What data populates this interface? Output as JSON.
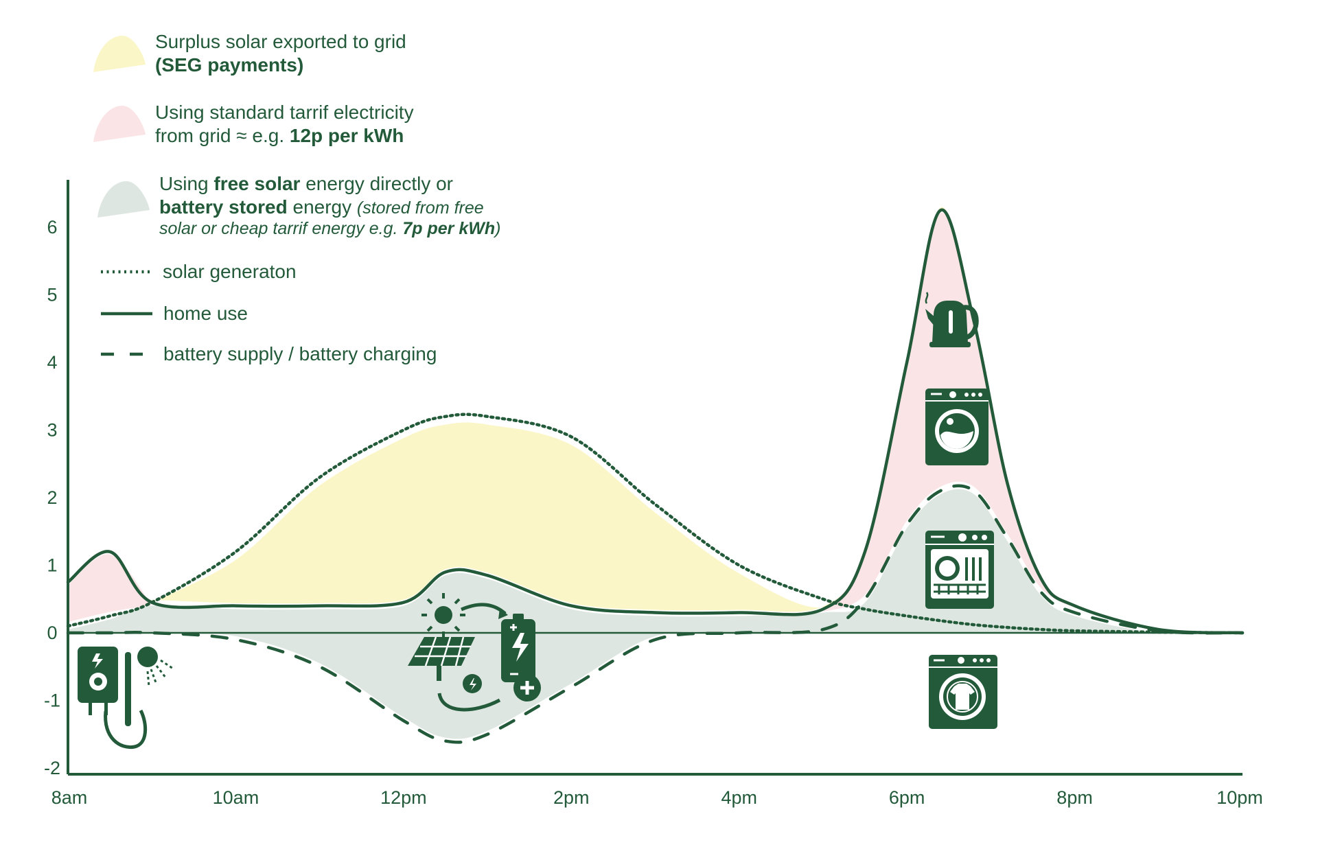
{
  "chart_data": {
    "type": "area",
    "title": "",
    "xlabel": "",
    "ylabel": "",
    "x_ticks": [
      "8am",
      "10am",
      "12pm",
      "2pm",
      "4pm",
      "6pm",
      "8pm",
      "10pm"
    ],
    "y_ticks": [
      "6",
      "5",
      "4",
      "3",
      "2",
      "1",
      "0",
      "-1",
      "-2"
    ],
    "ylim": [
      -2,
      6.6
    ],
    "xlim": [
      8,
      22
    ],
    "grid": false,
    "legend_position": "top-left",
    "x": [
      8.0,
      8.5,
      9.0,
      10.0,
      11.0,
      12.0,
      12.5,
      13.0,
      14.0,
      15.0,
      16.0,
      17.0,
      17.5,
      18.0,
      18.4,
      18.8,
      19.2,
      19.6,
      20.0,
      21.0,
      22.0
    ],
    "series": [
      {
        "name": "solar generaton",
        "style": "dotted",
        "values": [
          0.1,
          0.25,
          0.45,
          1.2,
          2.3,
          3.0,
          3.2,
          3.2,
          2.9,
          1.9,
          1.0,
          0.5,
          0.35,
          0.25,
          0.18,
          0.12,
          0.08,
          0.05,
          0.03,
          0.01,
          0.0
        ]
      },
      {
        "name": "home use",
        "style": "solid",
        "values": [
          0.75,
          1.2,
          0.45,
          0.4,
          0.4,
          0.45,
          0.9,
          0.85,
          0.4,
          0.3,
          0.3,
          0.35,
          1.2,
          4.0,
          6.25,
          4.6,
          2.2,
          0.8,
          0.4,
          0.05,
          0.0
        ]
      },
      {
        "name": "battery supply / battery charging",
        "style": "dashed",
        "values": [
          0.0,
          0.0,
          0.0,
          -0.1,
          -0.5,
          -1.3,
          -1.6,
          -1.5,
          -0.8,
          -0.1,
          0.0,
          0.05,
          0.5,
          1.6,
          2.1,
          2.1,
          1.4,
          0.6,
          0.3,
          0.03,
          0.0
        ]
      }
    ]
  },
  "legend": {
    "surplus": {
      "line1": "Surplus solar exported to grid",
      "line2": "(SEG payments)",
      "color": "#fbf6c8"
    },
    "grid": {
      "line1": "Using standard tarrif electricity",
      "line2a": "from grid ≈ e.g. ",
      "line2b": "12p per kWh",
      "color": "#fbe4e6"
    },
    "free": {
      "l1a": "Using ",
      "l1b": "free solar",
      "l1c": " energy directly or",
      "l2a": "battery stored",
      "l2b": " energy ",
      "l2c": "(stored from free",
      "l3a": "solar or cheap tarrif energy e.g. ",
      "l3b": "7p per kWh",
      "l3c": ")",
      "color": "#dde6e0"
    },
    "solar": "solar generaton",
    "home": "home use",
    "battery": "battery supply / battery charging"
  },
  "icons": [
    "electric-shower-icon",
    "solar-panel-charging-battery-icon",
    "kettle-icon",
    "washing-machine-icon",
    "dishwasher-icon",
    "tumble-dryer-icon"
  ],
  "colors": {
    "ink": "#225a3a",
    "surplus": "#fbf6c8",
    "grid": "#fbe4e6",
    "free": "#dde6e0"
  }
}
